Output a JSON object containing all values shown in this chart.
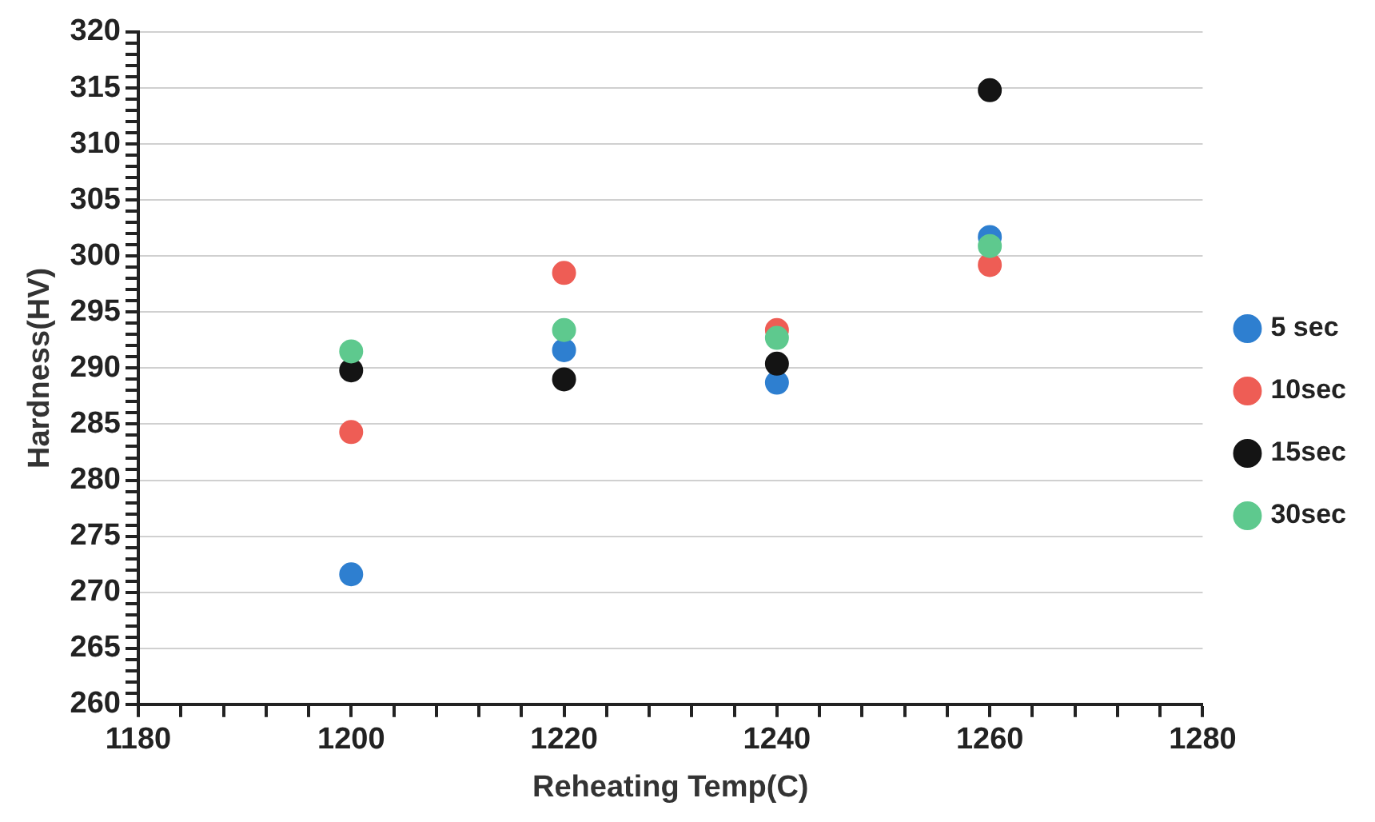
{
  "chart_data": {
    "type": "scatter",
    "xlabel": "Reheating Temp(C)",
    "ylabel": "Hardness(HV)",
    "x": [
      1200,
      1220,
      1240,
      1260
    ],
    "series": [
      {
        "name": "5 sec",
        "color": "#2e7fd0",
        "values": [
          271.6,
          291.6,
          288.7,
          301.7
        ]
      },
      {
        "name": "10sec",
        "color": "#ee5d55",
        "values": [
          284.3,
          298.5,
          293.4,
          299.2
        ]
      },
      {
        "name": "15sec",
        "color": "#141414",
        "values": [
          289.8,
          289,
          290.4,
          314.8
        ]
      },
      {
        "name": "30sec",
        "color": "#5ec98e",
        "values": [
          291.5,
          293.4,
          292.7,
          300.9
        ]
      }
    ],
    "xlim": [
      1180,
      1280
    ],
    "xticks": [
      1180,
      {
        "value": 1184,
        "label": null
      },
      {
        "value": 1188,
        "label": null
      },
      {
        "value": 1192,
        "label": null
      },
      {
        "value": 1196,
        "label": null
      },
      1200,
      {
        "value": 1204,
        "label": null
      },
      {
        "value": 1208,
        "label": null
      },
      {
        "value": 1212,
        "label": null
      },
      {
        "value": 1216,
        "label": null
      },
      1220,
      {
        "value": 1224,
        "label": null
      },
      {
        "value": 1228,
        "label": null
      },
      {
        "value": 1232,
        "label": null
      },
      {
        "value": 1236,
        "label": null
      },
      1240,
      {
        "value": 1244,
        "label": null
      },
      {
        "value": 1248,
        "label": null
      },
      {
        "value": 1252,
        "label": null
      },
      {
        "value": 1256,
        "label": null
      },
      1260,
      {
        "value": 1264,
        "label": null
      },
      {
        "value": 1268,
        "label": null
      },
      {
        "value": 1272,
        "label": null
      },
      {
        "value": 1276,
        "label": null
      },
      1280
    ],
    "ylim": [
      260,
      320
    ],
    "yticks": [
      260,
      {
        "value": 261,
        "label": null
      },
      {
        "value": 262,
        "label": null
      },
      {
        "value": 263,
        "label": null
      },
      {
        "value": 264,
        "label": null
      },
      265,
      {
        "value": 266,
        "label": null
      },
      {
        "value": 267,
        "label": null
      },
      {
        "value": 268,
        "label": null
      },
      {
        "value": 269,
        "label": null
      },
      270,
      {
        "value": 271,
        "label": null
      },
      {
        "value": 272,
        "label": null
      },
      {
        "value": 273,
        "label": null
      },
      {
        "value": 274,
        "label": null
      },
      275,
      {
        "value": 276,
        "label": null
      },
      {
        "value": 277,
        "label": null
      },
      {
        "value": 278,
        "label": null
      },
      {
        "value": 279,
        "label": null
      },
      280,
      {
        "value": 281,
        "label": null
      },
      {
        "value": 282,
        "label": null
      },
      {
        "value": 283,
        "label": null
      },
      {
        "value": 284,
        "label": null
      },
      285,
      {
        "value": 286,
        "label": null
      },
      {
        "value": 287,
        "label": null
      },
      {
        "value": 288,
        "label": null
      },
      {
        "value": 289,
        "label": null
      },
      290,
      {
        "value": 291,
        "label": null
      },
      {
        "value": 292,
        "label": null
      },
      {
        "value": 293,
        "label": null
      },
      {
        "value": 294,
        "label": null
      },
      295,
      {
        "value": 296,
        "label": null
      },
      {
        "value": 297,
        "label": null
      },
      {
        "value": 298,
        "label": null
      },
      {
        "value": 299,
        "label": null
      },
      300,
      {
        "value": 301,
        "label": null
      },
      {
        "value": 302,
        "label": null
      },
      {
        "value": 303,
        "label": null
      },
      {
        "value": 304,
        "label": null
      },
      305,
      {
        "value": 306,
        "label": null
      },
      {
        "value": 307,
        "label": null
      },
      {
        "value": 308,
        "label": null
      },
      {
        "value": 309,
        "label": null
      },
      310,
      {
        "value": 311,
        "label": null
      },
      {
        "value": 312,
        "label": null
      },
      {
        "value": 313,
        "label": null
      },
      {
        "value": 314,
        "label": null
      },
      315,
      {
        "value": 316,
        "label": null
      },
      {
        "value": 317,
        "label": null
      },
      {
        "value": 318,
        "label": null
      },
      {
        "value": 319,
        "label": null
      },
      320
    ],
    "grid": "y",
    "legend": "right",
    "marker": "circle"
  }
}
